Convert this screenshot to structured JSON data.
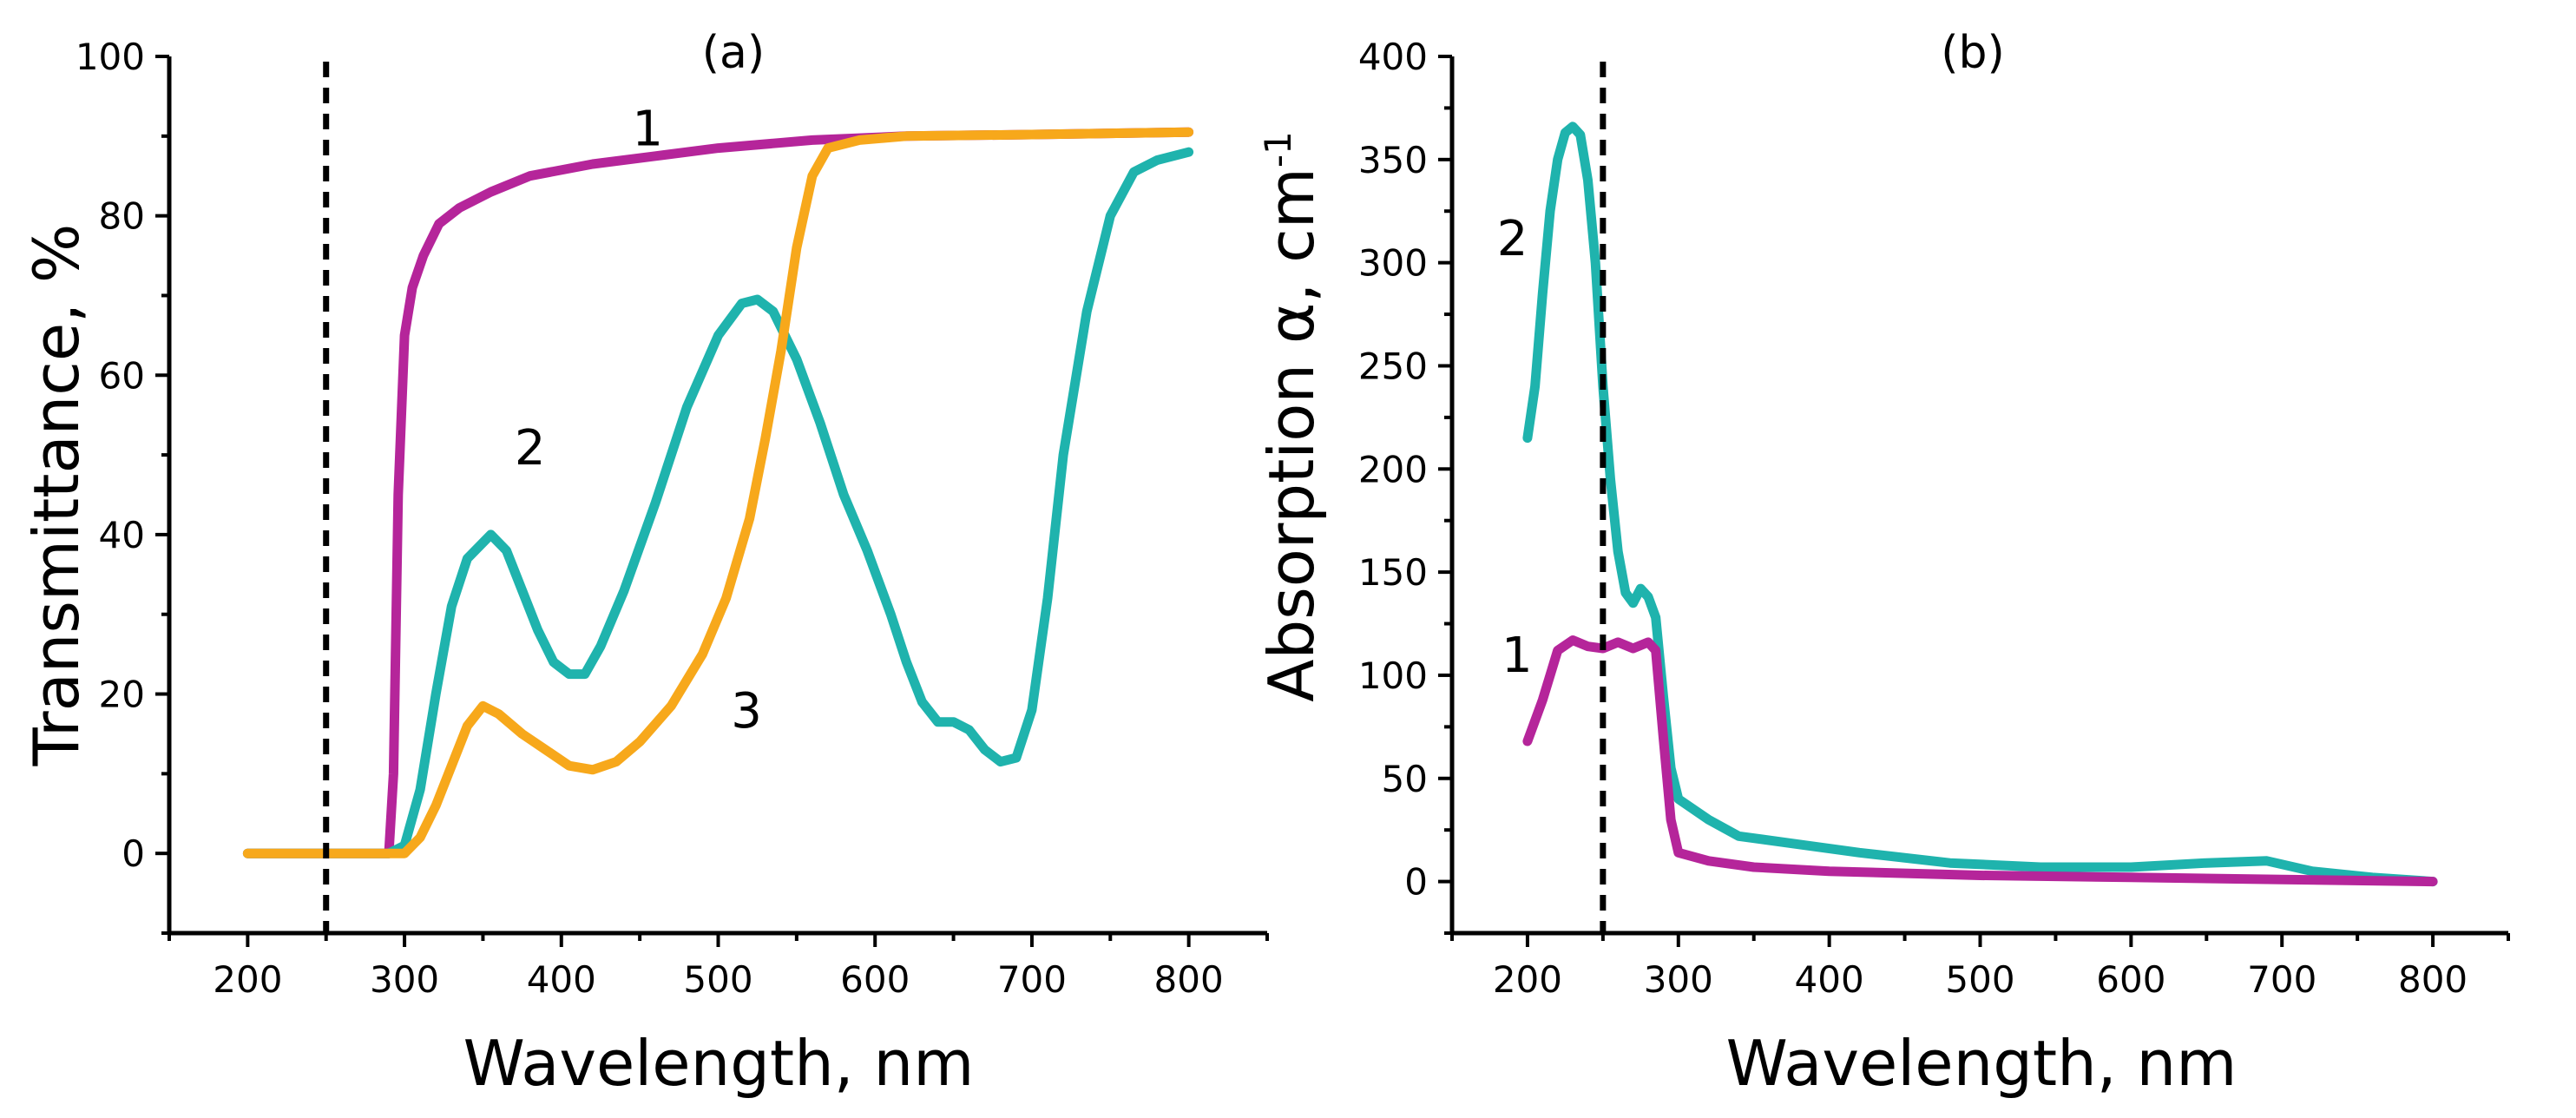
{
  "chart_data": [
    {
      "id": "a",
      "type": "line",
      "panel_label": "(a)",
      "xlabel": "Wavelength, nm",
      "ylabel": "Transmittance, %",
      "xlim": [
        150,
        850
      ],
      "ylim": [
        -10,
        100
      ],
      "xticks": [
        200,
        300,
        400,
        500,
        600,
        700,
        800
      ],
      "yticks": [
        0,
        20,
        40,
        60,
        80,
        100
      ],
      "vline": 250,
      "series": [
        {
          "name": "1",
          "color": "#b5259a",
          "label_at": [
            455,
            91
          ],
          "points": [
            [
              200,
              0
            ],
            [
              250,
              0
            ],
            [
              290,
              0
            ],
            [
              293,
              10
            ],
            [
              296,
              45
            ],
            [
              300,
              65
            ],
            [
              305,
              71
            ],
            [
              312,
              75
            ],
            [
              322,
              79
            ],
            [
              335,
              81
            ],
            [
              355,
              83
            ],
            [
              380,
              85
            ],
            [
              420,
              86.5
            ],
            [
              460,
              87.5
            ],
            [
              500,
              88.5
            ],
            [
              560,
              89.5
            ],
            [
              620,
              90
            ],
            [
              700,
              90.2
            ],
            [
              800,
              90.5
            ]
          ]
        },
        {
          "name": "2",
          "color": "#1fb3ad",
          "label_at": [
            380,
            51
          ],
          "points": [
            [
              200,
              0
            ],
            [
              250,
              0
            ],
            [
              290,
              0
            ],
            [
              300,
              1
            ],
            [
              310,
              8
            ],
            [
              320,
              20
            ],
            [
              330,
              31
            ],
            [
              340,
              37
            ],
            [
              355,
              40
            ],
            [
              365,
              38
            ],
            [
              375,
              33
            ],
            [
              385,
              28
            ],
            [
              395,
              24
            ],
            [
              405,
              22.5
            ],
            [
              415,
              22.5
            ],
            [
              425,
              26
            ],
            [
              440,
              33
            ],
            [
              460,
              44
            ],
            [
              480,
              56
            ],
            [
              500,
              65
            ],
            [
              515,
              69
            ],
            [
              525,
              69.5
            ],
            [
              535,
              68
            ],
            [
              550,
              62
            ],
            [
              565,
              54
            ],
            [
              580,
              45
            ],
            [
              595,
              38
            ],
            [
              610,
              30
            ],
            [
              620,
              24
            ],
            [
              630,
              19
            ],
            [
              640,
              16.5
            ],
            [
              650,
              16.5
            ],
            [
              660,
              15.5
            ],
            [
              670,
              13
            ],
            [
              680,
              11.5
            ],
            [
              690,
              12
            ],
            [
              700,
              18
            ],
            [
              710,
              32
            ],
            [
              720,
              50
            ],
            [
              735,
              68
            ],
            [
              750,
              80
            ],
            [
              765,
              85.5
            ],
            [
              780,
              87
            ],
            [
              800,
              88
            ]
          ]
        },
        {
          "name": "3",
          "color": "#f7a81b",
          "label_at": [
            518,
            18
          ],
          "points": [
            [
              200,
              0
            ],
            [
              250,
              0
            ],
            [
              300,
              0
            ],
            [
              310,
              2
            ],
            [
              320,
              6
            ],
            [
              330,
              11
            ],
            [
              340,
              16
            ],
            [
              350,
              18.5
            ],
            [
              360,
              17.5
            ],
            [
              375,
              15
            ],
            [
              390,
              13
            ],
            [
              405,
              11
            ],
            [
              420,
              10.5
            ],
            [
              435,
              11.5
            ],
            [
              450,
              14
            ],
            [
              470,
              18.5
            ],
            [
              490,
              25
            ],
            [
              505,
              32
            ],
            [
              520,
              42
            ],
            [
              530,
              52
            ],
            [
              540,
              63
            ],
            [
              550,
              76
            ],
            [
              560,
              85
            ],
            [
              570,
              88.5
            ],
            [
              590,
              89.5
            ],
            [
              620,
              90
            ],
            [
              700,
              90.2
            ],
            [
              800,
              90.5
            ]
          ]
        }
      ]
    },
    {
      "id": "b",
      "type": "line",
      "panel_label": "(b)",
      "xlabel": "Wavelength, nm",
      "ylabel": "Absorption α, cm",
      "ylabel_superscript": "-1",
      "xlim": [
        150,
        850
      ],
      "ylim": [
        -25,
        400
      ],
      "xticks": [
        200,
        300,
        400,
        500,
        600,
        700,
        800
      ],
      "yticks": [
        0,
        50,
        100,
        150,
        200,
        250,
        300,
        350,
        400
      ],
      "vline": 250,
      "series": [
        {
          "name": "2",
          "color": "#1fb3ad",
          "label_at": [
            190,
            312
          ],
          "points": [
            [
              200,
              215
            ],
            [
              205,
              240
            ],
            [
              210,
              285
            ],
            [
              215,
              325
            ],
            [
              220,
              350
            ],
            [
              225,
              363
            ],
            [
              230,
              366
            ],
            [
              235,
              362
            ],
            [
              240,
              340
            ],
            [
              245,
              300
            ],
            [
              250,
              240
            ],
            [
              255,
              195
            ],
            [
              260,
              160
            ],
            [
              265,
              140
            ],
            [
              270,
              135
            ],
            [
              275,
              142
            ],
            [
              280,
              138
            ],
            [
              285,
              128
            ],
            [
              290,
              90
            ],
            [
              295,
              55
            ],
            [
              300,
              40
            ],
            [
              320,
              30
            ],
            [
              340,
              22
            ],
            [
              380,
              18
            ],
            [
              420,
              14
            ],
            [
              480,
              9
            ],
            [
              540,
              7
            ],
            [
              600,
              7
            ],
            [
              650,
              9
            ],
            [
              690,
              10
            ],
            [
              720,
              5
            ],
            [
              760,
              2
            ],
            [
              800,
              0
            ]
          ]
        },
        {
          "name": "1",
          "color": "#b5259a",
          "label_at": [
            193,
            110
          ],
          "points": [
            [
              200,
              68
            ],
            [
              210,
              88
            ],
            [
              220,
              112
            ],
            [
              230,
              117
            ],
            [
              240,
              114
            ],
            [
              250,
              113
            ],
            [
              260,
              116
            ],
            [
              270,
              113
            ],
            [
              280,
              116
            ],
            [
              285,
              112
            ],
            [
              290,
              70
            ],
            [
              295,
              30
            ],
            [
              300,
              14
            ],
            [
              320,
              10
            ],
            [
              350,
              7
            ],
            [
              400,
              5
            ],
            [
              500,
              3
            ],
            [
              600,
              2
            ],
            [
              700,
              1
            ],
            [
              800,
              0
            ]
          ]
        }
      ]
    }
  ]
}
